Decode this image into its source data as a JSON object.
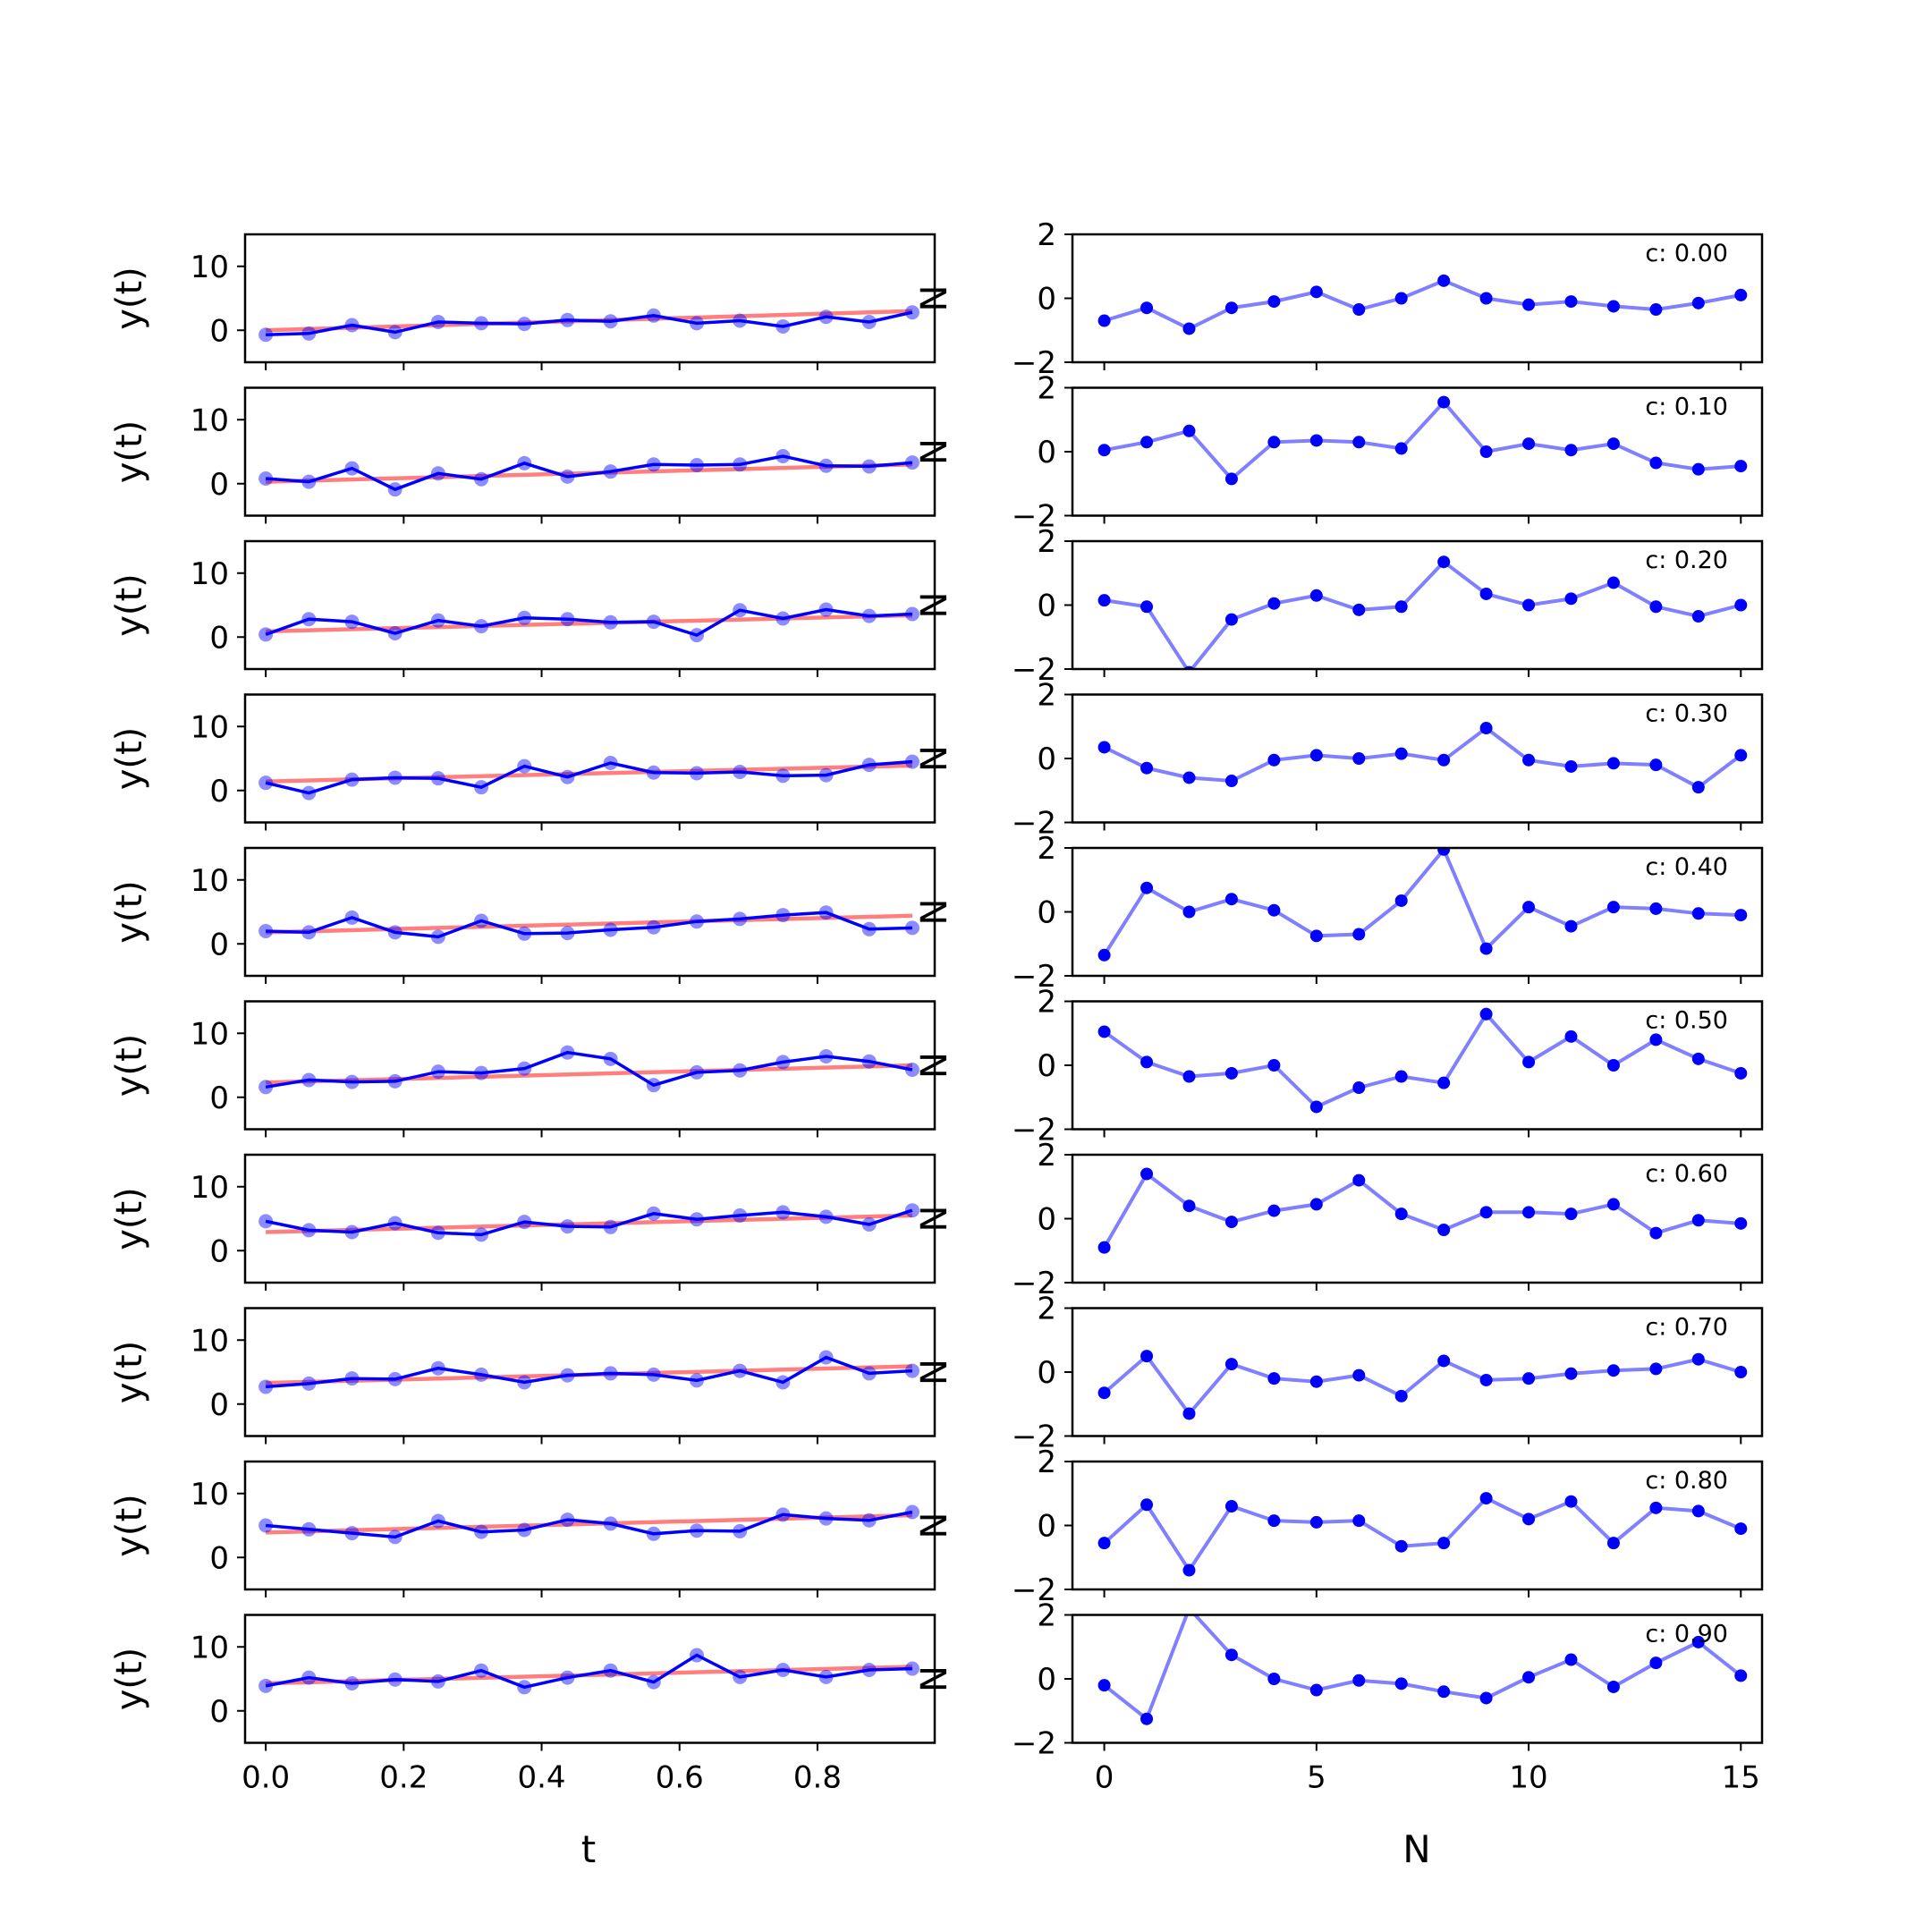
{
  "figure": {
    "left_xlabel": "t",
    "right_xlabel": "N",
    "left_ylabel": "y(t)",
    "right_ylabel": "N"
  },
  "colors": {
    "observed": "#0000ff",
    "trend": "#ff0000",
    "axes": "#000000"
  },
  "chart_data": [
    {
      "type": "line",
      "panel": "left",
      "xlabel": "t",
      "ylabel": "y(t)",
      "xlim": [
        -0.03,
        0.97
      ],
      "ylim": [
        -5,
        15
      ],
      "xticks": [
        0.0,
        0.2,
        0.4,
        0.6,
        0.8
      ],
      "xtick_labels": [
        "0.0",
        "0.2",
        "0.4",
        "0.6",
        "0.8"
      ],
      "yticks": [
        0,
        10
      ],
      "ytick_labels": [
        "0",
        "10"
      ],
      "grid": false,
      "x": [
        0.0,
        0.0625,
        0.125,
        0.1875,
        0.25,
        0.3125,
        0.375,
        0.4375,
        0.5,
        0.5625,
        0.625,
        0.6875,
        0.75,
        0.8125,
        0.875,
        0.9375
      ],
      "rows": [
        {
          "c": 0.0,
          "trend": [
            0.0,
            3.0
          ],
          "values": [
            -0.7,
            -0.5,
            0.8,
            -0.3,
            1.3,
            1.1,
            1.0,
            1.6,
            1.4,
            2.3,
            1.1,
            1.5,
            0.6,
            2.1,
            1.3,
            2.8
          ]
        },
        {
          "c": 0.1,
          "trend": [
            0.3,
            3.0
          ],
          "values": [
            0.8,
            0.3,
            2.4,
            -0.9,
            1.6,
            0.7,
            3.2,
            1.1,
            1.9,
            3.0,
            2.9,
            3.0,
            4.3,
            2.8,
            2.7,
            3.3
          ]
        },
        {
          "c": 0.2,
          "trend": [
            0.9,
            3.4
          ],
          "values": [
            0.4,
            2.8,
            2.4,
            0.6,
            2.6,
            1.7,
            3.0,
            2.8,
            2.3,
            2.4,
            0.3,
            4.2,
            2.9,
            4.3,
            3.3,
            3.6
          ]
        },
        {
          "c": 0.3,
          "trend": [
            1.4,
            3.9
          ],
          "values": [
            1.2,
            -0.4,
            1.7,
            2.0,
            1.9,
            0.5,
            3.8,
            2.1,
            4.3,
            2.8,
            2.7,
            2.9,
            2.3,
            2.4,
            4.0,
            4.5
          ]
        },
        {
          "c": 0.4,
          "trend": [
            1.8,
            4.4
          ],
          "values": [
            2.0,
            1.8,
            4.1,
            1.8,
            1.1,
            3.6,
            1.6,
            1.7,
            2.2,
            2.6,
            3.5,
            3.9,
            4.5,
            4.9,
            2.3,
            2.5
          ]
        },
        {
          "c": 0.5,
          "trend": [
            2.3,
            5.0
          ],
          "values": [
            1.6,
            2.7,
            2.4,
            2.5,
            4.0,
            3.8,
            4.5,
            7.0,
            6.0,
            1.9,
            3.9,
            4.2,
            5.5,
            6.4,
            5.6,
            4.3
          ]
        },
        {
          "c": 0.6,
          "trend": [
            2.9,
            5.5
          ],
          "values": [
            4.6,
            3.2,
            2.9,
            4.3,
            2.8,
            2.5,
            4.5,
            3.8,
            3.7,
            5.8,
            4.9,
            5.5,
            6.0,
            5.3,
            4.1,
            6.3
          ]
        },
        {
          "c": 0.7,
          "trend": [
            3.3,
            5.9
          ],
          "values": [
            2.7,
            3.2,
            4.0,
            3.9,
            5.6,
            4.6,
            3.4,
            4.5,
            4.8,
            4.6,
            3.7,
            5.2,
            3.4,
            7.3,
            4.8,
            5.2
          ]
        },
        {
          "c": 0.8,
          "trend": [
            3.9,
            6.6
          ],
          "values": [
            5.0,
            4.4,
            3.8,
            3.2,
            5.7,
            4.0,
            4.3,
            5.9,
            5.3,
            3.7,
            4.2,
            4.1,
            6.7,
            6.1,
            5.8,
            7.1
          ]
        },
        {
          "c": 0.9,
          "trend": [
            4.3,
            6.9
          ],
          "values": [
            3.9,
            5.2,
            4.3,
            4.9,
            4.6,
            6.3,
            3.7,
            5.2,
            6.3,
            4.5,
            8.7,
            5.3,
            6.4,
            5.3,
            6.4,
            6.6
          ]
        }
      ]
    },
    {
      "type": "line",
      "panel": "right",
      "xlabel": "N",
      "ylabel": "N",
      "xlim": [
        -0.75,
        15.5
      ],
      "ylim": [
        -2,
        2
      ],
      "xticks": [
        0,
        5,
        10,
        15
      ],
      "xtick_labels": [
        "0",
        "5",
        "10",
        "15"
      ],
      "yticks": [
        -2,
        0,
        2
      ],
      "ytick_labels": [
        "−2",
        "0",
        "2"
      ],
      "grid": false,
      "x": [
        0,
        1,
        2,
        3,
        4,
        5,
        6,
        7,
        8,
        9,
        10,
        11,
        12,
        13,
        14,
        15
      ],
      "rows": [
        {
          "annotation": "c: 0.00",
          "values": [
            -0.7,
            -0.3,
            -0.95,
            -0.3,
            -0.1,
            0.2,
            -0.35,
            0.0,
            0.55,
            -0.0,
            -0.2,
            -0.1,
            -0.25,
            -0.35,
            -0.15,
            0.1
          ]
        },
        {
          "annotation": "c: 0.10",
          "values": [
            0.05,
            0.3,
            0.65,
            -0.85,
            0.3,
            0.35,
            0.3,
            0.1,
            1.55,
            -0.0,
            0.25,
            0.05,
            0.25,
            -0.35,
            -0.55,
            -0.45
          ]
        },
        {
          "annotation": "c: 0.20",
          "values": [
            0.15,
            -0.05,
            -2.1,
            -0.45,
            0.05,
            0.3,
            -0.15,
            -0.05,
            1.35,
            0.35,
            -0.0,
            0.2,
            0.7,
            -0.05,
            -0.35,
            0.0
          ]
        },
        {
          "annotation": "c: 0.30",
          "values": [
            0.35,
            -0.3,
            -0.6,
            -0.7,
            -0.05,
            0.1,
            0.0,
            0.15,
            -0.05,
            0.95,
            -0.05,
            -0.25,
            -0.15,
            -0.2,
            -0.9,
            0.1
          ]
        },
        {
          "annotation": "c: 0.40",
          "values": [
            -1.35,
            0.75,
            0.0,
            0.4,
            0.05,
            -0.75,
            -0.7,
            0.35,
            1.95,
            -1.15,
            0.15,
            -0.45,
            0.15,
            0.1,
            -0.05,
            -0.1
          ]
        },
        {
          "annotation": "c: 0.50",
          "values": [
            1.05,
            0.1,
            -0.35,
            -0.25,
            -0.0,
            -1.3,
            -0.7,
            -0.35,
            -0.55,
            1.6,
            0.1,
            0.9,
            -0.0,
            0.8,
            0.2,
            -0.25
          ]
        },
        {
          "annotation": "c: 0.60",
          "values": [
            -0.9,
            1.4,
            0.4,
            -0.1,
            0.25,
            0.45,
            1.2,
            0.15,
            -0.35,
            0.2,
            0.2,
            0.15,
            0.45,
            -0.45,
            -0.05,
            -0.15
          ]
        },
        {
          "annotation": "c: 0.70",
          "values": [
            -0.65,
            0.5,
            -1.3,
            0.25,
            -0.2,
            -0.3,
            -0.1,
            -0.75,
            0.35,
            -0.25,
            -0.2,
            -0.05,
            0.05,
            0.1,
            0.4,
            0.0
          ]
        },
        {
          "annotation": "c: 0.80",
          "values": [
            -0.55,
            0.65,
            -1.4,
            0.6,
            0.15,
            0.1,
            0.15,
            -0.65,
            -0.55,
            0.85,
            0.2,
            0.75,
            -0.55,
            0.55,
            0.45,
            -0.1
          ]
        },
        {
          "annotation": "c: 0.90",
          "values": [
            -0.2,
            -1.25,
            2.2,
            0.75,
            0.0,
            -0.35,
            -0.05,
            -0.15,
            -0.4,
            -0.6,
            0.05,
            0.6,
            -0.25,
            0.5,
            1.15,
            0.1
          ]
        }
      ]
    }
  ]
}
